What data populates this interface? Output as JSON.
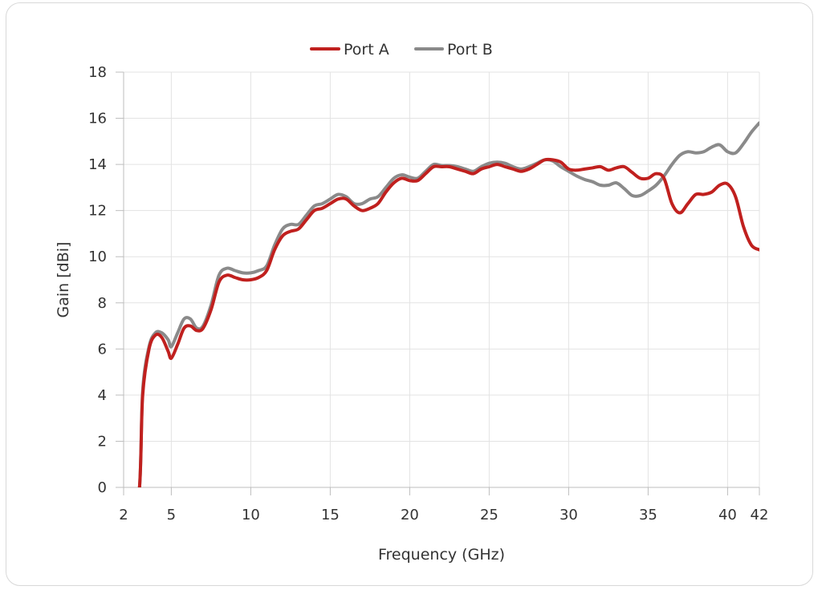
{
  "chart_data": {
    "type": "line",
    "title": "",
    "xlabel": "Frequency (GHz)",
    "ylabel": "Gain [dBi]",
    "xlim": [
      2,
      42
    ],
    "ylim": [
      0,
      18
    ],
    "x_ticks": [
      2,
      5,
      10,
      15,
      20,
      25,
      30,
      35,
      40,
      42
    ],
    "y_ticks": [
      0,
      2,
      4,
      6,
      8,
      10,
      12,
      14,
      16,
      18
    ],
    "grid": true,
    "legend_position": "top-center",
    "series": [
      {
        "name": "Port A",
        "color": "#c0201e",
        "points": [
          [
            2.5,
            -2
          ],
          [
            3.0,
            0
          ],
          [
            3.2,
            4
          ],
          [
            3.6,
            6
          ],
          [
            4.0,
            6.6
          ],
          [
            4.4,
            6.5
          ],
          [
            4.8,
            5.9
          ],
          [
            5.0,
            5.6
          ],
          [
            5.4,
            6.2
          ],
          [
            5.8,
            6.9
          ],
          [
            6.2,
            7.0
          ],
          [
            6.6,
            6.8
          ],
          [
            7.0,
            6.9
          ],
          [
            7.5,
            7.7
          ],
          [
            8.0,
            8.9
          ],
          [
            8.5,
            9.2
          ],
          [
            9.0,
            9.1
          ],
          [
            9.5,
            9.0
          ],
          [
            10.0,
            9.0
          ],
          [
            10.5,
            9.1
          ],
          [
            11.0,
            9.4
          ],
          [
            11.5,
            10.3
          ],
          [
            12.0,
            10.9
          ],
          [
            12.5,
            11.1
          ],
          [
            13.0,
            11.2
          ],
          [
            13.5,
            11.6
          ],
          [
            14.0,
            12.0
          ],
          [
            14.5,
            12.1
          ],
          [
            15.0,
            12.3
          ],
          [
            15.5,
            12.5
          ],
          [
            16.0,
            12.5
          ],
          [
            16.5,
            12.2
          ],
          [
            17.0,
            12.0
          ],
          [
            17.5,
            12.1
          ],
          [
            18.0,
            12.3
          ],
          [
            18.5,
            12.8
          ],
          [
            19.0,
            13.2
          ],
          [
            19.5,
            13.4
          ],
          [
            20.0,
            13.3
          ],
          [
            20.5,
            13.3
          ],
          [
            21.0,
            13.6
          ],
          [
            21.5,
            13.9
          ],
          [
            22.0,
            13.9
          ],
          [
            22.5,
            13.9
          ],
          [
            23.0,
            13.8
          ],
          [
            23.5,
            13.7
          ],
          [
            24.0,
            13.6
          ],
          [
            24.5,
            13.8
          ],
          [
            25.0,
            13.9
          ],
          [
            25.5,
            14.0
          ],
          [
            26.0,
            13.9
          ],
          [
            26.5,
            13.8
          ],
          [
            27.0,
            13.7
          ],
          [
            27.5,
            13.8
          ],
          [
            28.0,
            14.0
          ],
          [
            28.5,
            14.2
          ],
          [
            29.0,
            14.2
          ],
          [
            29.5,
            14.1
          ],
          [
            30.0,
            13.8
          ],
          [
            30.5,
            13.75
          ],
          [
            31.0,
            13.8
          ],
          [
            31.5,
            13.85
          ],
          [
            32.0,
            13.9
          ],
          [
            32.5,
            13.75
          ],
          [
            33.0,
            13.85
          ],
          [
            33.5,
            13.9
          ],
          [
            34.0,
            13.65
          ],
          [
            34.5,
            13.4
          ],
          [
            35.0,
            13.4
          ],
          [
            35.5,
            13.6
          ],
          [
            36.0,
            13.4
          ],
          [
            36.5,
            12.3
          ],
          [
            37.0,
            11.9
          ],
          [
            37.5,
            12.3
          ],
          [
            38.0,
            12.7
          ],
          [
            38.5,
            12.7
          ],
          [
            39.0,
            12.8
          ],
          [
            39.5,
            13.1
          ],
          [
            40.0,
            13.15
          ],
          [
            40.5,
            12.6
          ],
          [
            41.0,
            11.3
          ],
          [
            41.5,
            10.5
          ],
          [
            42.0,
            10.3
          ]
        ]
      },
      {
        "name": "Port B",
        "color": "#8a8a8a",
        "points": [
          [
            2.5,
            -2
          ],
          [
            3.0,
            0
          ],
          [
            3.2,
            4.2
          ],
          [
            3.6,
            6.1
          ],
          [
            4.0,
            6.7
          ],
          [
            4.4,
            6.7
          ],
          [
            4.8,
            6.4
          ],
          [
            5.0,
            6.1
          ],
          [
            5.4,
            6.7
          ],
          [
            5.8,
            7.3
          ],
          [
            6.2,
            7.3
          ],
          [
            6.6,
            6.9
          ],
          [
            7.0,
            7.0
          ],
          [
            7.5,
            7.9
          ],
          [
            8.0,
            9.2
          ],
          [
            8.5,
            9.5
          ],
          [
            9.0,
            9.4
          ],
          [
            9.5,
            9.3
          ],
          [
            10.0,
            9.3
          ],
          [
            10.5,
            9.4
          ],
          [
            11.0,
            9.6
          ],
          [
            11.5,
            10.5
          ],
          [
            12.0,
            11.2
          ],
          [
            12.5,
            11.4
          ],
          [
            13.0,
            11.4
          ],
          [
            13.5,
            11.8
          ],
          [
            14.0,
            12.2
          ],
          [
            14.5,
            12.3
          ],
          [
            15.0,
            12.5
          ],
          [
            15.5,
            12.7
          ],
          [
            16.0,
            12.6
          ],
          [
            16.5,
            12.3
          ],
          [
            17.0,
            12.3
          ],
          [
            17.5,
            12.5
          ],
          [
            18.0,
            12.6
          ],
          [
            18.5,
            13.0
          ],
          [
            19.0,
            13.4
          ],
          [
            19.5,
            13.55
          ],
          [
            20.0,
            13.45
          ],
          [
            20.5,
            13.4
          ],
          [
            21.0,
            13.7
          ],
          [
            21.5,
            14.0
          ],
          [
            22.0,
            13.95
          ],
          [
            22.5,
            13.95
          ],
          [
            23.0,
            13.9
          ],
          [
            23.5,
            13.8
          ],
          [
            24.0,
            13.7
          ],
          [
            24.5,
            13.9
          ],
          [
            25.0,
            14.05
          ],
          [
            25.5,
            14.1
          ],
          [
            26.0,
            14.05
          ],
          [
            26.5,
            13.9
          ],
          [
            27.0,
            13.8
          ],
          [
            27.5,
            13.9
          ],
          [
            28.0,
            14.05
          ],
          [
            28.5,
            14.2
          ],
          [
            29.0,
            14.15
          ],
          [
            29.5,
            13.9
          ],
          [
            30.0,
            13.7
          ],
          [
            30.5,
            13.5
          ],
          [
            31.0,
            13.35
          ],
          [
            31.5,
            13.25
          ],
          [
            32.0,
            13.1
          ],
          [
            32.5,
            13.1
          ],
          [
            33.0,
            13.2
          ],
          [
            33.5,
            12.95
          ],
          [
            34.0,
            12.65
          ],
          [
            34.5,
            12.65
          ],
          [
            35.0,
            12.85
          ],
          [
            35.5,
            13.1
          ],
          [
            36.0,
            13.5
          ],
          [
            36.5,
            14.0
          ],
          [
            37.0,
            14.4
          ],
          [
            37.5,
            14.55
          ],
          [
            38.0,
            14.5
          ],
          [
            38.5,
            14.55
          ],
          [
            39.0,
            14.75
          ],
          [
            39.5,
            14.85
          ],
          [
            40.0,
            14.55
          ],
          [
            40.5,
            14.5
          ],
          [
            41.0,
            14.9
          ],
          [
            41.5,
            15.4
          ],
          [
            42.0,
            15.8
          ]
        ]
      }
    ]
  }
}
